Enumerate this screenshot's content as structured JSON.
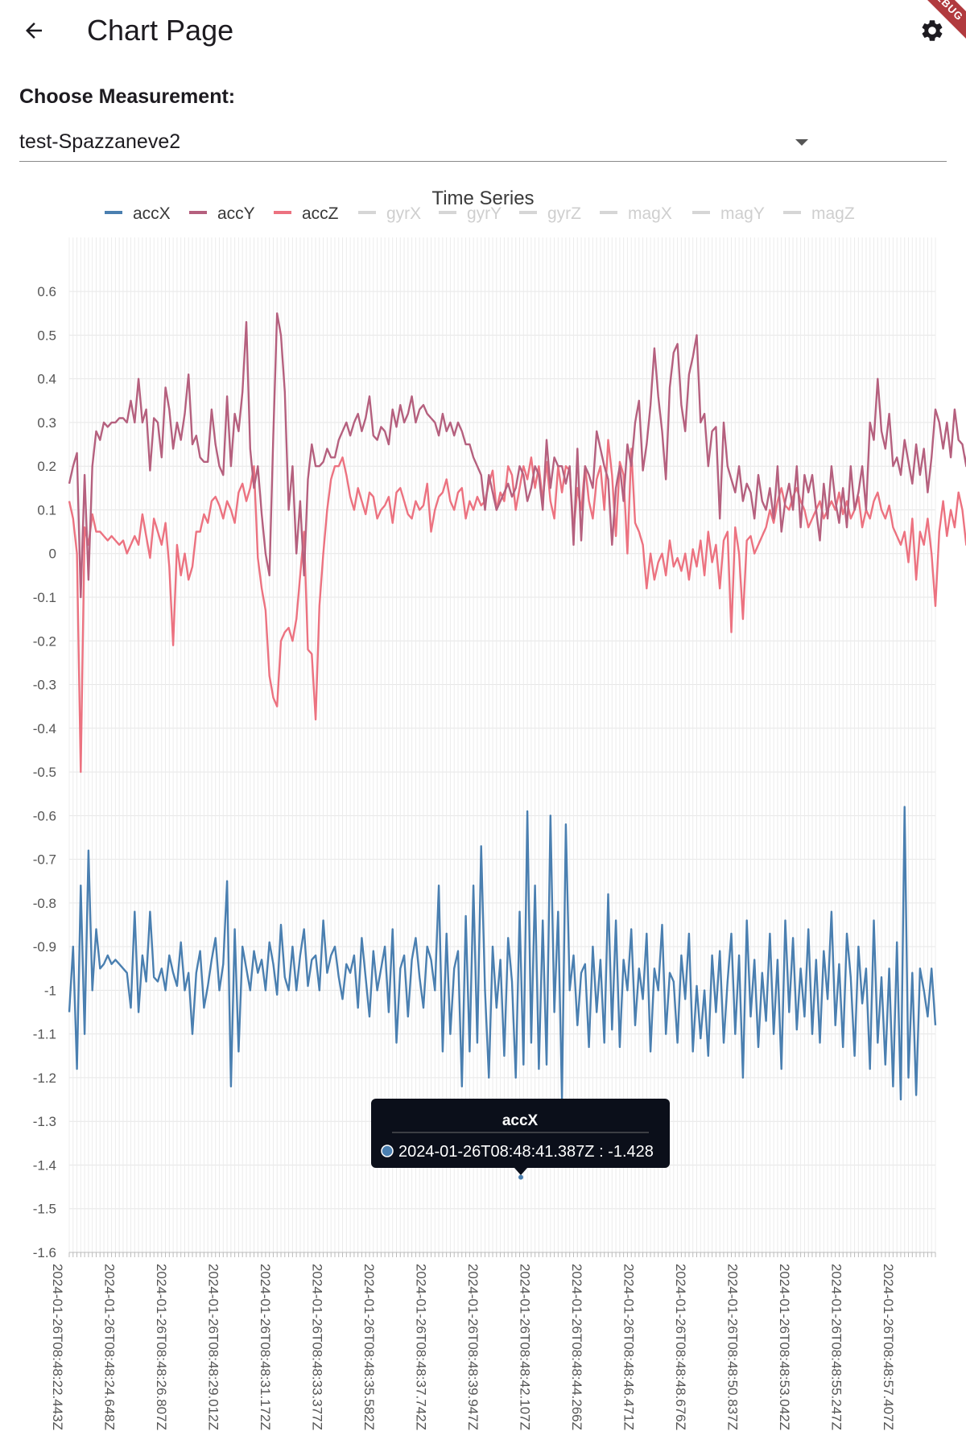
{
  "appbar": {
    "title": "Chart Page",
    "back_icon": "arrow-left-icon",
    "settings_icon": "gear-icon",
    "debug_banner": "DEBUG"
  },
  "measurement": {
    "label": "Choose Measurement:",
    "selected": "test-Spazzaneve2"
  },
  "colors": {
    "accX": "#4a7fb0",
    "accY": "#b5607e",
    "accZ": "#ec7280",
    "disabled": "#d6d6d6",
    "grid": "#e6e6e6",
    "tooltip_bg": "#0b0f1a"
  },
  "chart_data": {
    "type": "line",
    "title": "Time Series",
    "legend": [
      {
        "name": "accX",
        "active": true
      },
      {
        "name": "accY",
        "active": true
      },
      {
        "name": "accZ",
        "active": true
      },
      {
        "name": "gyrX",
        "active": false
      },
      {
        "name": "gyrY",
        "active": false
      },
      {
        "name": "gyrZ",
        "active": false
      },
      {
        "name": "magX",
        "active": false
      },
      {
        "name": "magY",
        "active": false
      },
      {
        "name": "magZ",
        "active": false
      }
    ],
    "legend_position": "top",
    "ylim": [
      -1.6,
      0.65
    ],
    "y_ticks": [
      "0.6",
      "0.5",
      "0.4",
      "0.3",
      "0.2",
      "0.1",
      "0",
      "-0.1",
      "-0.2",
      "-0.3",
      "-0.4",
      "-0.5",
      "-0.6",
      "-0.7",
      "-0.8",
      "-0.9",
      "-1",
      "-1.1",
      "-1.2",
      "-1.3",
      "-1.4",
      "-1.5",
      "-1.6"
    ],
    "x_ticks": [
      "2024-01-26T08:48:22.443Z",
      "2024-01-26T08:48:24.648Z",
      "2024-01-26T08:48:26.807Z",
      "2024-01-26T08:48:29.012Z",
      "2024-01-26T08:48:31.172Z",
      "2024-01-26T08:48:33.377Z",
      "2024-01-26T08:48:35.582Z",
      "2024-01-26T08:48:37.742Z",
      "2024-01-26T08:48:39.947Z",
      "2024-01-26T08:48:42.107Z",
      "2024-01-26T08:48:44.266Z",
      "2024-01-26T08:48:46.471Z",
      "2024-01-26T08:48:48.676Z",
      "2024-01-26T08:48:50.837Z",
      "2024-01-26T08:48:53.042Z",
      "2024-01-26T08:48:55.247Z",
      "2024-01-26T08:48:57.407Z"
    ],
    "grid": true,
    "series": [
      {
        "name": "accX",
        "values": [
          -1.05,
          -0.9,
          -1.18,
          -0.76,
          -1.1,
          -0.68,
          -1.0,
          -0.86,
          -0.95,
          -0.94,
          -0.92,
          -0.94,
          -0.93,
          -0.94,
          -0.95,
          -0.96,
          -1.04,
          -0.82,
          -1.05,
          -0.92,
          -0.98,
          -0.82,
          -0.97,
          -0.98,
          -0.95,
          -1.0,
          -0.92,
          -0.96,
          -0.99,
          -0.89,
          -1.0,
          -0.96,
          -1.1,
          -0.96,
          -0.91,
          -1.04,
          -0.99,
          -0.93,
          -0.88,
          -1.0,
          -0.94,
          -0.75,
          -1.22,
          -0.86,
          -1.14,
          -0.9,
          -0.95,
          -1.0,
          -0.91,
          -0.96,
          -0.93,
          -1.0,
          -0.89,
          -0.94,
          -1.01,
          -0.85,
          -0.97,
          -1.0,
          -0.9,
          -1.0,
          -0.92,
          -0.86,
          -0.99,
          -0.93,
          -0.92,
          -1.0,
          -0.84,
          -0.96,
          -0.92,
          -0.9,
          -0.97,
          -1.02,
          -0.94,
          -0.96,
          -0.92,
          -1.04,
          -0.88,
          -0.97,
          -1.06,
          -0.91,
          -1.0,
          -0.95,
          -0.9,
          -1.05,
          -0.86,
          -1.12,
          -0.95,
          -0.92,
          -1.06,
          -0.93,
          -0.88,
          -0.97,
          -1.04,
          -0.9,
          -0.93,
          -1.0,
          -0.76,
          -1.14,
          -0.87,
          -1.1,
          -0.95,
          -0.91,
          -1.22,
          -0.83,
          -1.14,
          -0.76,
          -1.12,
          -0.67,
          -1.0,
          -1.2,
          -0.9,
          -1.04,
          -0.93,
          -1.15,
          -0.88,
          -0.98,
          -1.2,
          -0.82,
          -1.17,
          -0.59,
          -1.12,
          -0.76,
          -1.18,
          -0.84,
          -1.17,
          -0.6,
          -1.05,
          -0.82,
          -1.25,
          -0.62,
          -1.0,
          -0.92,
          -1.08,
          -0.96,
          -0.94,
          -1.13,
          -0.9,
          -1.05,
          -0.93,
          -1.12,
          -0.78,
          -1.09,
          -0.84,
          -1.13,
          -0.93,
          -1.0,
          -0.86,
          -1.08,
          -0.95,
          -1.02,
          -0.87,
          -1.14,
          -0.95,
          -1.0,
          -0.85,
          -1.1,
          -0.96,
          -0.98,
          -1.12,
          -0.92,
          -1.02,
          -0.87,
          -1.14,
          -0.99,
          -1.11,
          -1.0,
          -1.15,
          -0.92,
          -1.05,
          -0.91,
          -1.12,
          -0.98,
          -0.87,
          -1.1,
          -0.92,
          -1.2,
          -0.84,
          -1.06,
          -0.93,
          -1.13,
          -0.96,
          -1.07,
          -0.87,
          -1.1,
          -0.93,
          -1.18,
          -0.84,
          -1.05,
          -0.88,
          -1.09,
          -0.95,
          -1.06,
          -0.86,
          -1.1,
          -0.93,
          -1.12,
          -0.91,
          -1.02,
          -0.82,
          -1.08,
          -0.94,
          -1.13,
          -0.87,
          -0.97,
          -1.15,
          -0.9,
          -1.03,
          -0.95,
          -1.18,
          -0.84,
          -1.12,
          -0.97,
          -1.17,
          -0.95,
          -1.22,
          -0.89,
          -1.25,
          -0.58,
          -1.2,
          -0.96,
          -1.24,
          -0.95,
          -1.0,
          -1.06,
          -0.95,
          -1.08
        ]
      },
      {
        "name": "accY",
        "values": [
          0.16,
          0.2,
          0.23,
          -0.1,
          0.18,
          -0.06,
          0.2,
          0.28,
          0.26,
          0.3,
          0.29,
          0.3,
          0.3,
          0.31,
          0.31,
          0.3,
          0.35,
          0.3,
          0.4,
          0.3,
          0.33,
          0.19,
          0.31,
          0.3,
          0.22,
          0.38,
          0.33,
          0.24,
          0.3,
          0.26,
          0.32,
          0.41,
          0.25,
          0.27,
          0.22,
          0.21,
          0.21,
          0.33,
          0.25,
          0.2,
          0.18,
          0.36,
          0.2,
          0.32,
          0.28,
          0.37,
          0.53,
          0.24,
          0.15,
          0.2,
          0.09,
          0.0,
          -0.05,
          0.27,
          0.55,
          0.5,
          0.37,
          0.1,
          0.2,
          0.0,
          0.12,
          -0.05,
          0.17,
          0.25,
          0.2,
          0.2,
          0.21,
          0.24,
          0.22,
          0.22,
          0.26,
          0.28,
          0.3,
          0.27,
          0.3,
          0.32,
          0.28,
          0.31,
          0.36,
          0.27,
          0.26,
          0.29,
          0.28,
          0.25,
          0.33,
          0.29,
          0.34,
          0.3,
          0.32,
          0.36,
          0.3,
          0.33,
          0.34,
          0.32,
          0.31,
          0.3,
          0.27,
          0.32,
          0.28,
          0.3,
          0.27,
          0.3,
          0.28,
          0.25,
          0.25,
          0.22,
          0.2,
          0.18,
          0.1,
          0.18,
          0.14,
          0.1,
          0.12,
          0.14,
          0.16,
          0.13,
          0.15,
          0.2,
          0.18,
          0.12,
          0.15,
          0.2,
          0.18,
          0.1,
          0.26,
          0.15,
          0.22,
          0.2,
          0.2,
          0.16,
          0.2,
          0.02,
          0.24,
          0.03,
          0.2,
          0.18,
          0.15,
          0.28,
          0.24,
          0.2,
          0.17,
          0.02,
          0.15,
          0.2,
          0.12,
          0.25,
          0.2,
          0.3,
          0.35,
          0.19,
          0.25,
          0.34,
          0.47,
          0.36,
          0.28,
          0.17,
          0.38,
          0.46,
          0.48,
          0.34,
          0.28,
          0.41,
          0.45,
          0.5,
          0.3,
          0.32,
          0.2,
          0.28,
          0.29,
          0.08,
          0.3,
          0.2,
          0.17,
          0.14,
          0.2,
          0.12,
          0.16,
          0.14,
          0.08,
          0.18,
          0.12,
          0.1,
          0.15,
          0.08,
          0.2,
          0.05,
          0.12,
          0.16,
          0.1,
          0.2,
          0.06,
          0.18,
          0.14,
          0.18,
          0.1,
          0.03,
          0.16,
          0.08,
          0.2,
          0.12,
          0.07,
          0.15,
          0.06,
          0.2,
          0.1,
          0.14,
          0.2,
          0.1,
          0.3,
          0.26,
          0.4,
          0.28,
          0.24,
          0.32,
          0.2,
          0.22,
          0.18,
          0.26,
          0.21,
          0.16,
          0.25,
          0.18,
          0.24,
          0.14,
          0.22,
          0.33,
          0.3,
          0.24,
          0.3,
          0.22,
          0.33,
          0.26,
          0.25,
          0.2,
          0.35,
          0.22,
          0.2,
          0.14,
          0.1,
          0.06,
          -0.05,
          0.07,
          0.1,
          0.0,
          0.04,
          0.07,
          0.06
        ]
      },
      {
        "name": "accZ",
        "values": [
          0.12,
          0.08,
          0.0,
          -0.5,
          0.06,
          0.02,
          0.09,
          0.05,
          0.05,
          0.04,
          0.03,
          0.04,
          0.03,
          0.02,
          0.03,
          0.0,
          0.02,
          0.04,
          0.02,
          0.09,
          0.04,
          -0.01,
          0.08,
          0.05,
          0.02,
          0.07,
          -0.03,
          -0.21,
          0.02,
          -0.05,
          0.0,
          -0.06,
          -0.03,
          0.05,
          0.05,
          0.09,
          0.07,
          0.12,
          0.13,
          0.11,
          0.08,
          0.12,
          0.1,
          0.07,
          0.14,
          0.16,
          0.12,
          0.15,
          0.2,
          -0.01,
          -0.08,
          -0.13,
          -0.28,
          -0.33,
          -0.35,
          -0.2,
          -0.18,
          -0.17,
          -0.2,
          -0.15,
          -0.05,
          0.05,
          -0.22,
          -0.23,
          -0.38,
          -0.12,
          0.0,
          0.1,
          0.17,
          0.2,
          0.2,
          0.22,
          0.18,
          0.13,
          0.1,
          0.15,
          0.12,
          0.09,
          0.14,
          0.13,
          0.08,
          0.1,
          0.11,
          0.13,
          0.07,
          0.14,
          0.15,
          0.12,
          0.09,
          0.08,
          0.12,
          0.1,
          0.11,
          0.16,
          0.05,
          0.1,
          0.13,
          0.14,
          0.17,
          0.12,
          0.1,
          0.14,
          0.15,
          0.08,
          0.12,
          0.1,
          0.13,
          0.11,
          0.12,
          0.16,
          0.19,
          0.1,
          0.14,
          0.12,
          0.2,
          0.18,
          0.1,
          0.15,
          0.2,
          0.17,
          0.22,
          0.15,
          0.2,
          0.12,
          0.21,
          0.12,
          0.08,
          0.2,
          0.14,
          0.2,
          0.19,
          0.05,
          0.15,
          0.1,
          0.2,
          0.12,
          0.08,
          0.17,
          0.2,
          0.1,
          0.26,
          0.18,
          0.04,
          0.21,
          0.18,
          0.0,
          0.24,
          0.07,
          0.05,
          0.02,
          -0.08,
          0.0,
          -0.06,
          -0.02,
          0.0,
          -0.05,
          0.03,
          -0.03,
          -0.01,
          -0.04,
          0.0,
          -0.06,
          0.01,
          -0.03,
          0.03,
          -0.05,
          0.05,
          -0.02,
          0.02,
          -0.08,
          0.03,
          0.05,
          -0.18,
          0.06,
          0.0,
          -0.15,
          0.03,
          0.04,
          0.0,
          0.02,
          0.04,
          0.06,
          0.1,
          0.07,
          0.12,
          0.15,
          0.11,
          0.1,
          0.13,
          0.15,
          0.12,
          0.1,
          0.06,
          0.08,
          0.1,
          0.12,
          0.08,
          0.1,
          0.12,
          0.1,
          0.14,
          0.09,
          0.12,
          0.08,
          0.1,
          0.13,
          0.06,
          0.1,
          0.08,
          0.12,
          0.14,
          0.1,
          0.08,
          0.11,
          0.06,
          0.04,
          0.02,
          0.05,
          -0.02,
          0.08,
          -0.06,
          0.05,
          0.02,
          0.08,
          0.0,
          -0.12,
          0.05,
          0.12,
          0.04,
          0.1,
          0.06,
          0.14,
          0.1,
          0.02,
          0.06,
          0.15,
          0.1,
          0.08,
          0.06,
          0.1,
          0.04,
          0.0,
          0.05,
          0.08,
          0.02,
          0.06,
          0.1,
          0.04,
          0.08,
          0.22,
          0.1
        ]
      }
    ],
    "tooltip": {
      "series": "accX",
      "x": "2024-01-26T08:48:41.387Z",
      "value": -1.428,
      "text": "2024-01-26T08:48:41.387Z : -1.428"
    }
  }
}
